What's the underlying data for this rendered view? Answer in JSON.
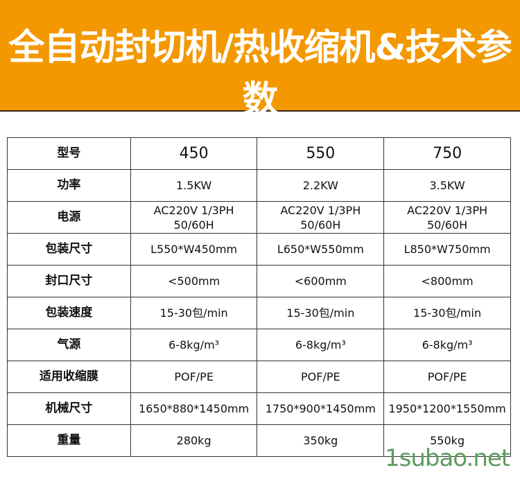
{
  "title": "全自动封切机/热收缩机&技术参数",
  "rows": [
    {
      "label": "型号",
      "values": [
        "450",
        "550",
        "750"
      ]
    },
    {
      "label": "功率",
      "values": [
        "1.5KW",
        "2.2KW",
        "3.5KW"
      ]
    },
    {
      "label": "电源",
      "values": [
        "AC220V 1/3PH\n50/60H",
        "AC220V 1/3PH\n50/60H",
        "AC220V 1/3PH\n50/60H"
      ]
    },
    {
      "label": "包装尺寸",
      "values": [
        "L550*W450mm",
        "L650*W550mm",
        "L850*W750mm"
      ]
    },
    {
      "label": "封口尺寸",
      "values": [
        "<500mm",
        "<600mm",
        "<800mm"
      ]
    },
    {
      "label": "包装速度",
      "values": [
        "15-30包/min",
        "15-30包/min",
        "15-30包/min"
      ]
    },
    {
      "label": "气源",
      "values": [
        "6-8kg/m³",
        "6-8kg/m³",
        "6-8kg/m³"
      ]
    },
    {
      "label": "适用收缩膜",
      "values": [
        "POF/PE",
        "POF/PE",
        "POF/PE"
      ]
    },
    {
      "label": "机械尺寸",
      "values": [
        "1650*880*1450mm",
        "1750*900*1450mm",
        "1950*1200*1550mm"
      ]
    },
    {
      "label": "重量",
      "values": [
        "280kg",
        "350kg",
        "550kg"
      ]
    }
  ],
  "watermark": "1subao.net",
  "colors": {
    "header": "#f39800",
    "watermark": "#5e9c5e"
  }
}
